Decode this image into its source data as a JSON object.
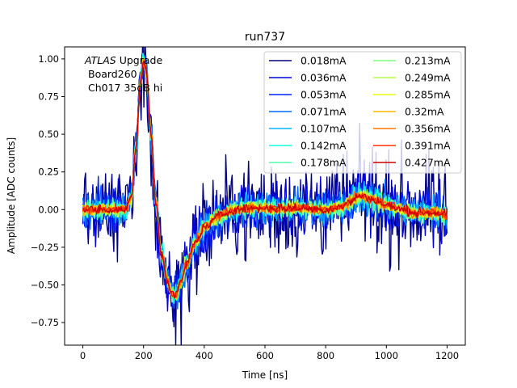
{
  "chart_data": {
    "type": "line",
    "title": "run737",
    "xlabel": "Time [ns]",
    "ylabel": "Amplitude [ADC counts]",
    "xlim": [
      -60,
      1260
    ],
    "ylim": [
      -0.9,
      1.08
    ],
    "xticks": [
      0,
      200,
      400,
      600,
      800,
      1000,
      1200
    ],
    "yticks": [
      -0.75,
      -0.5,
      -0.25,
      0.0,
      0.25,
      0.5,
      0.75,
      1.0
    ],
    "xtick_labels": [
      "0",
      "200",
      "400",
      "600",
      "800",
      "1000",
      "1200"
    ],
    "ytick_labels": [
      "−0.75",
      "−0.50",
      "−0.25",
      "0.00",
      "0.25",
      "0.50",
      "0.75",
      "1.00"
    ],
    "grid": false,
    "legend_position": "top-right",
    "legend_columns": 2,
    "annotation": {
      "line1_italic": "ATLAS",
      "line1_rest": " Upgrade",
      "line2": "Board260",
      "line3": "Ch017 35dB hi"
    },
    "pulse_shape": {
      "description": "normalized pulse: baseline 0, peak ~1.0 at ~200 ns, undershoot ~-0.57 at ~305 ns, small bump ~0.09 at ~920 ns",
      "x": [
        0,
        140,
        160,
        175,
        190,
        200,
        210,
        225,
        240,
        260,
        280,
        295,
        305,
        320,
        340,
        370,
        400,
        450,
        500,
        550,
        600,
        700,
        800,
        850,
        880,
        900,
        920,
        950,
        1000,
        1050,
        1100,
        1150,
        1200
      ],
      "y": [
        0.0,
        0.0,
        0.08,
        0.42,
        0.85,
        0.99,
        0.9,
        0.5,
        0.05,
        -0.3,
        -0.48,
        -0.56,
        -0.57,
        -0.5,
        -0.37,
        -0.22,
        -0.12,
        -0.04,
        0.0,
        0.01,
        0.01,
        0.01,
        0.0,
        0.02,
        0.05,
        0.08,
        0.09,
        0.07,
        0.03,
        0.0,
        -0.02,
        -0.02,
        -0.03
      ]
    },
    "series": [
      {
        "name": "0.018mA",
        "color": "#00007f",
        "noise": 0.17
      },
      {
        "name": "0.036mA",
        "color": "#0000da",
        "noise": 0.1
      },
      {
        "name": "0.053mA",
        "color": "#0021ff",
        "noise": 0.075
      },
      {
        "name": "0.071mA",
        "color": "#006dff",
        "noise": 0.06
      },
      {
        "name": "0.107mA",
        "color": "#00b5ff",
        "noise": 0.045
      },
      {
        "name": "0.142mA",
        "color": "#17ffe1",
        "noise": 0.035
      },
      {
        "name": "0.178mA",
        "color": "#4effa9",
        "noise": 0.03
      },
      {
        "name": "0.213mA",
        "color": "#7dff7a",
        "noise": 0.026
      },
      {
        "name": "0.249mA",
        "color": "#b4ff43",
        "noise": 0.023
      },
      {
        "name": "0.285mA",
        "color": "#ecff0b",
        "noise": 0.021
      },
      {
        "name": "0.32mA",
        "color": "#ffb900",
        "noise": 0.019
      },
      {
        "name": "0.356mA",
        "color": "#ff7300",
        "noise": 0.017
      },
      {
        "name": "0.391mA",
        "color": "#ff2d00",
        "noise": 0.016
      },
      {
        "name": "0.427mA",
        "color": "#cd0000",
        "noise": 0.015
      }
    ]
  }
}
